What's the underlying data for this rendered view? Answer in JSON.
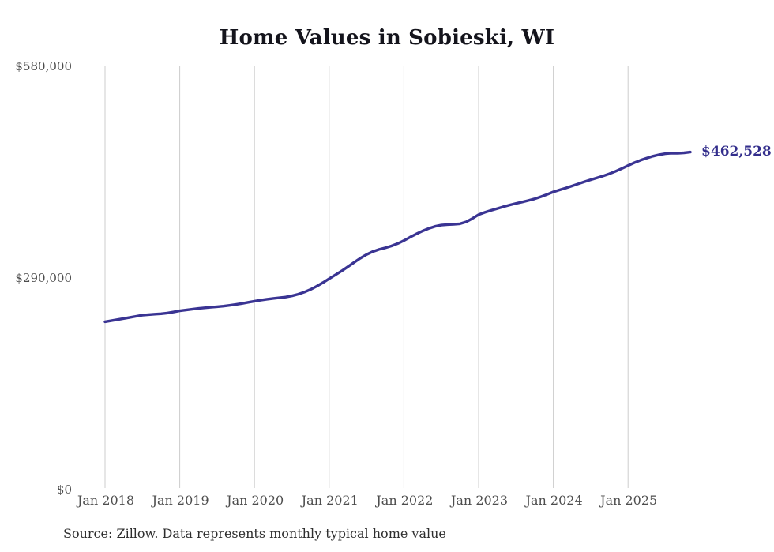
{
  "title": "Home Values in Sobieski, WI",
  "source_note": "Source: Zillow. Data represents monthly typical home value",
  "end_label": "$462,528",
  "colors": {
    "line": "#3a3493",
    "end_label_text": "#332e8c",
    "grid": "#cccccc",
    "axis_text": "#4d4d4d",
    "title_text": "#14141c",
    "source_text": "#2e2e2e",
    "background": "#ffffff"
  },
  "chart_data": {
    "type": "line",
    "title": "Home Values in Sobieski, WI",
    "xlabel": "",
    "ylabel": "",
    "ylim": [
      0,
      580000
    ],
    "grid": "vertical-only",
    "legend": "none",
    "frequency": "monthly",
    "x_start": "Jan 2018",
    "x_tick_labels": [
      "Jan 2018",
      "Jan 2019",
      "Jan 2020",
      "Jan 2021",
      "Jan 2022",
      "Jan 2023",
      "Jan 2024",
      "Jan 2025"
    ],
    "y_ticks": [
      {
        "label": "$0",
        "value": 0
      },
      {
        "label": "$290,000",
        "value": 290000
      },
      {
        "label": "$580,000",
        "value": 580000
      }
    ],
    "last_value": 462528,
    "last_value_label": "$462,528",
    "series": [
      {
        "name": "Typical home value",
        "values": [
          230000,
          231500,
          233000,
          234500,
          236000,
          237500,
          239000,
          239800,
          240400,
          241000,
          242000,
          243400,
          245000,
          246100,
          247200,
          248200,
          249100,
          249900,
          250600,
          251400,
          252400,
          253600,
          255100,
          256700,
          258200,
          259600,
          260900,
          262000,
          262800,
          263800,
          265400,
          267700,
          270600,
          274200,
          278600,
          283600,
          289000,
          294200,
          299600,
          305400,
          311300,
          317000,
          322100,
          326100,
          329100,
          331200,
          333800,
          337200,
          341200,
          345900,
          350400,
          354400,
          357900,
          360700,
          362400,
          363200,
          363600,
          364200,
          366800,
          371500,
          376800,
          379900,
          382600,
          385100,
          387600,
          390000,
          392100,
          394100,
          396100,
          398400,
          401300,
          404500,
          408000,
          410700,
          413300,
          416100,
          419000,
          421900,
          424600,
          427200,
          429800,
          432700,
          436200,
          440000,
          444000,
          447900,
          451300,
          454300,
          456900,
          458900,
          460300,
          461100,
          460900,
          461500,
          462528
        ]
      }
    ]
  }
}
